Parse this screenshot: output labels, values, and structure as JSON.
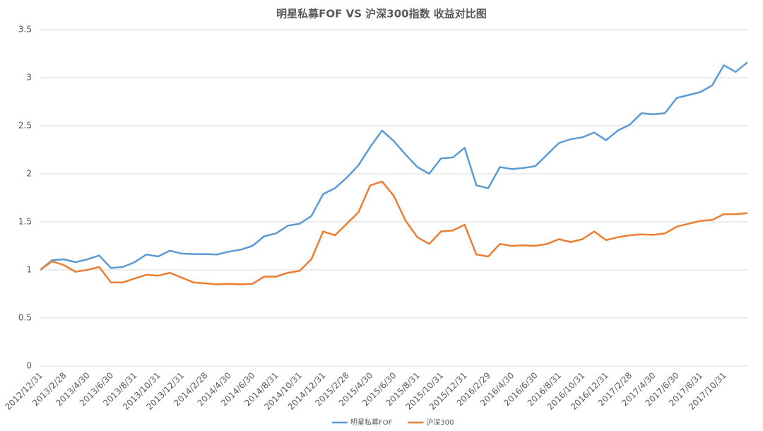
{
  "chart_data": {
    "type": "line",
    "title": "明星私募FOF VS 沪深300指数 收益对比图",
    "categories": [
      "2012/12/31",
      null,
      "2013/2/28",
      null,
      "2013/4/30",
      null,
      "2013/6/30",
      null,
      "2013/8/31",
      null,
      "2013/10/31",
      null,
      "2013/12/31",
      null,
      "2014/2/28",
      null,
      "2014/4/30",
      null,
      "2014/6/30",
      null,
      "2014/8/31",
      null,
      "2014/10/31",
      null,
      "2014/12/31",
      null,
      "2015/2/28",
      null,
      "2015/4/30",
      null,
      "2015/6/30",
      null,
      "2015/8/31",
      null,
      "2015/10/31",
      null,
      "2015/12/31",
      null,
      "2016/2/29",
      null,
      "2016/4/30",
      null,
      "2016/6/30",
      null,
      "2016/8/31",
      null,
      "2016/10/31",
      null,
      "2016/12/31",
      null,
      "2017/2/28",
      null,
      "2017/4/30",
      null,
      "2017/6/30",
      null,
      "2017/8/31",
      null,
      "2017/10/31",
      null,
      null
    ],
    "series": [
      {
        "name": "明星私募FOF",
        "color": "#5b9bd5",
        "values": [
          1.0,
          1.1,
          1.11,
          1.08,
          1.11,
          1.15,
          1.02,
          1.03,
          1.08,
          1.16,
          1.14,
          1.2,
          1.17,
          1.165,
          1.165,
          1.16,
          1.19,
          1.21,
          1.25,
          1.35,
          1.38,
          1.46,
          1.48,
          1.56,
          1.79,
          1.85,
          1.96,
          2.09,
          2.28,
          2.45,
          2.34,
          2.2,
          2.07,
          2.0,
          2.16,
          2.17,
          2.27,
          1.88,
          1.85,
          2.07,
          2.05,
          2.06,
          2.08,
          2.2,
          2.32,
          2.36,
          2.38,
          2.43,
          2.35,
          2.45,
          2.51,
          2.63,
          2.62,
          2.63,
          2.79,
          2.82,
          2.85,
          2.92,
          3.13,
          3.06,
          3.16
        ]
      },
      {
        "name": "沪深300",
        "color": "#ed7d31",
        "values": [
          1.0,
          1.09,
          1.05,
          0.98,
          1.0,
          1.03,
          0.87,
          0.87,
          0.91,
          0.95,
          0.94,
          0.97,
          0.92,
          0.87,
          0.86,
          0.85,
          0.855,
          0.85,
          0.855,
          0.93,
          0.93,
          0.97,
          0.99,
          1.11,
          1.4,
          1.36,
          1.48,
          1.6,
          1.88,
          1.92,
          1.77,
          1.51,
          1.34,
          1.27,
          1.4,
          1.41,
          1.47,
          1.16,
          1.14,
          1.27,
          1.25,
          1.255,
          1.25,
          1.27,
          1.32,
          1.29,
          1.32,
          1.4,
          1.31,
          1.34,
          1.36,
          1.37,
          1.365,
          1.38,
          1.45,
          1.48,
          1.51,
          1.52,
          1.58,
          1.58,
          1.59
        ]
      }
    ],
    "ylim": [
      0,
      3.5
    ],
    "yticks": [
      0,
      0.5,
      1,
      1.5,
      2,
      2.5,
      3,
      3.5
    ],
    "grid": true,
    "legend": "bottom"
  }
}
